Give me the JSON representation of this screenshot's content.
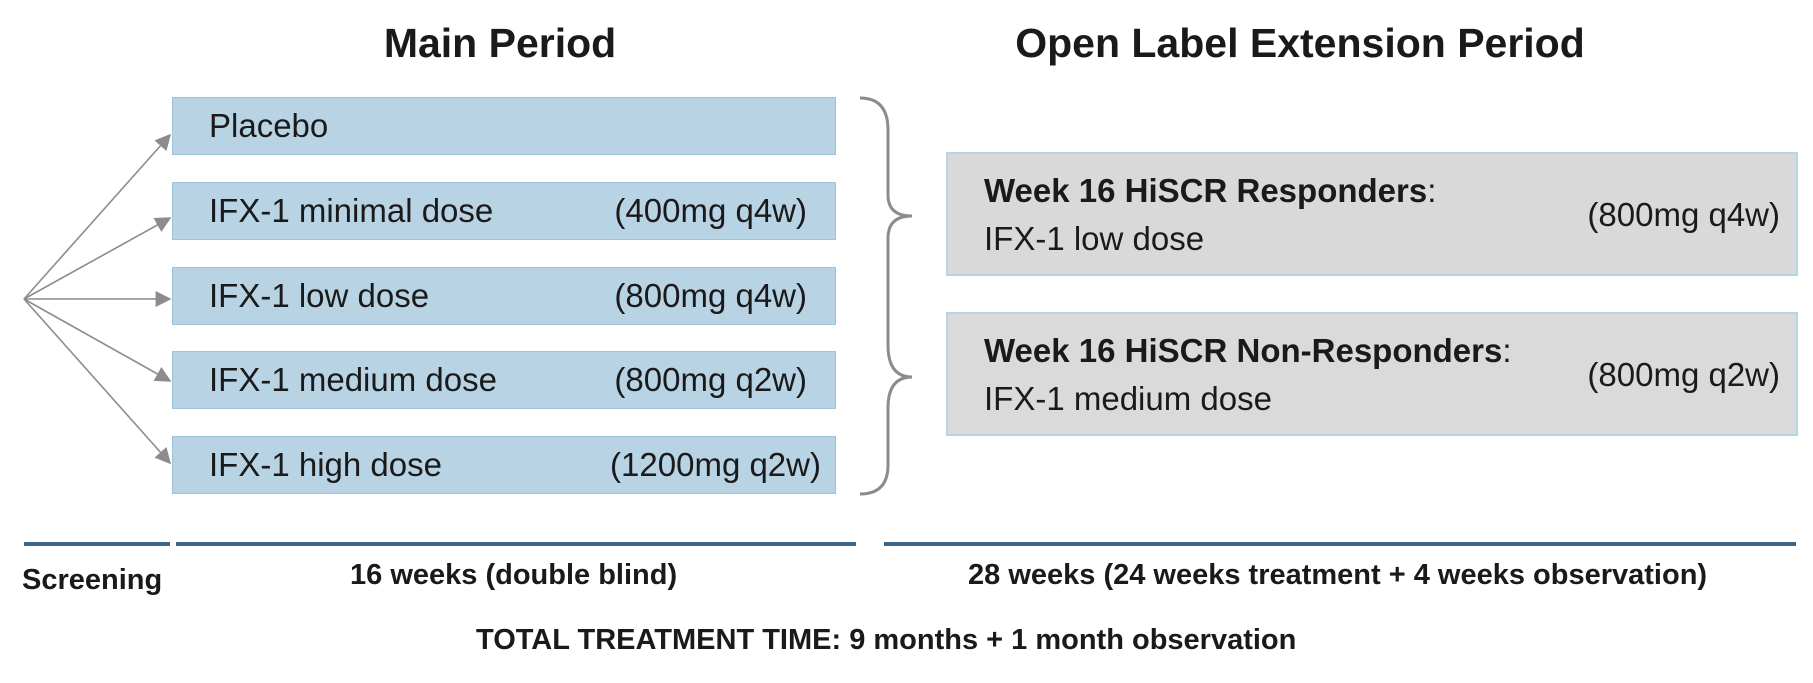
{
  "headings": {
    "main_period": "Main Period",
    "ole_period": "Open Label Extension Period"
  },
  "main_arms": [
    {
      "name": "Placebo",
      "dose": ""
    },
    {
      "name": "IFX-1 minimal dose",
      "dose": "(400mg q4w)"
    },
    {
      "name": "IFX-1 low dose",
      "dose": "(800mg q4w)"
    },
    {
      "name": "IFX-1 medium dose",
      "dose": "(800mg q2w)"
    },
    {
      "name": "IFX-1 high dose",
      "dose": "(1200mg q2w)"
    }
  ],
  "ole_boxes": [
    {
      "title": "Week 16 HiSCR Responders",
      "colon": ":",
      "subtitle": "IFX-1 low dose",
      "dose": "(800mg q4w)",
      "fill": "#d9d9d9"
    },
    {
      "title": "Week 16 HiSCR Non-Responders",
      "colon": ":",
      "subtitle": "IFX-1 medium dose",
      "dose": "(800mg q2w)",
      "fill": "#dadada"
    }
  ],
  "timeline": {
    "screening": "Screening",
    "main_duration": "16 weeks (double blind)",
    "ole_duration": "28 weeks (24 weeks treatment + 4 weeks observation)",
    "total": "TOTAL TREATMENT TIME: 9 months + 1 month observation"
  },
  "colors": {
    "arm_fill": "#b8d3e4",
    "rule": "#3b6687",
    "arrow": "#8c8c8c"
  }
}
